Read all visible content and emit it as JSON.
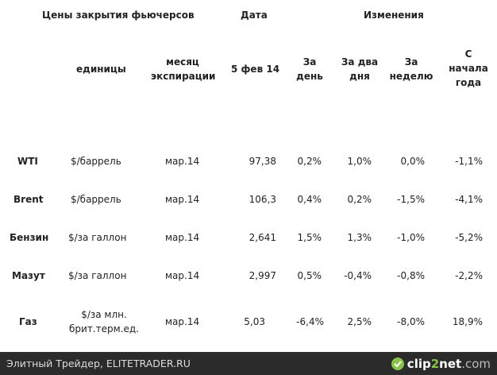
{
  "header": {
    "title": "Цены закрытия фьючерсов",
    "date_group": "Дата",
    "changes_group": "Изменения"
  },
  "columns": {
    "units": "единицы",
    "expiry": [
      "месяц",
      "экспирации"
    ],
    "date": "5 фев 14",
    "day": [
      "За",
      "день"
    ],
    "two_days": [
      "За два",
      "дня"
    ],
    "week": [
      "За",
      "неделю"
    ],
    "ytd": [
      "С",
      "начала",
      "года"
    ]
  },
  "rows": [
    {
      "name": "WTI",
      "unit": [
        "$/баррель"
      ],
      "expiry": "мар.14",
      "price": "97,38",
      "day": "0,2%",
      "two_days": "1,0%",
      "week": "0,0%",
      "ytd": "-1,1%"
    },
    {
      "name": "Brent",
      "unit": [
        "$/баррель"
      ],
      "expiry": "мар.14",
      "price": "106,3",
      "day": "0,4%",
      "two_days": "0,2%",
      "week": "-1,5%",
      "ytd": "-4,1%"
    },
    {
      "name": "Бензин",
      "unit": [
        "$/за галлон"
      ],
      "expiry": "мар.14",
      "price": "2,641",
      "day": "1,5%",
      "two_days": "1,3%",
      "week": "-1,0%",
      "ytd": "-5,2%"
    },
    {
      "name": "Мазут",
      "unit": [
        "$/за галлон"
      ],
      "expiry": "мар.14",
      "price": "2,997",
      "day": "0,5%",
      "two_days": "-0,4%",
      "week": "-0,8%",
      "ytd": "-2,2%"
    },
    {
      "name": "Газ",
      "unit": [
        "$/за млн.",
        "брит.терм.ед."
      ],
      "expiry": "мар.14",
      "price": "5,03",
      "day": "-6,4%",
      "two_days": "2,5%",
      "week": "-8,0%",
      "ytd": "18,9%"
    }
  ],
  "footer": {
    "caption": "Элитный Трейдер, ELITETRADER.RU",
    "logo_parts": [
      "clip",
      "2",
      "net",
      ".com"
    ],
    "logo_icon": "clip2net-logo-icon"
  }
}
